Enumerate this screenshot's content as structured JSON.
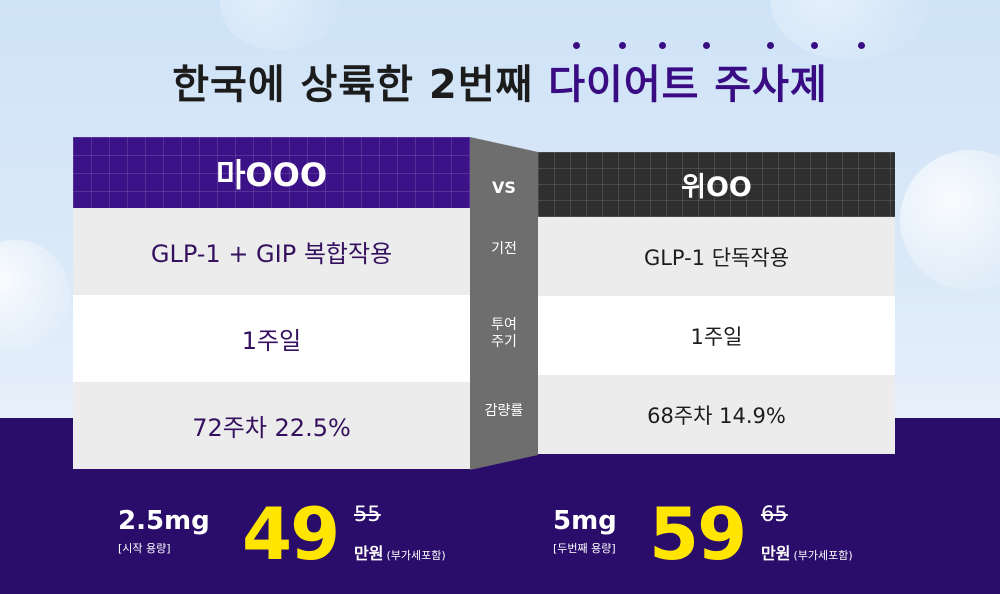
{
  "title": {
    "part1": "한국에 상륙한 2번째 ",
    "highlight": "다이어트 주사제"
  },
  "left": {
    "name": "마OOO",
    "rows": [
      "GLP-1 + GIP 복합작용",
      "1주일",
      "72주차 22.5%"
    ],
    "dose": "2.5mg",
    "dose_note": "[시작 용량]",
    "price": "49",
    "old_price": "55",
    "unit": "만원",
    "vat": "(부가세포함)"
  },
  "middle": {
    "vs": "VS",
    "labels": [
      "기전",
      "투여\n주기",
      "감량률"
    ]
  },
  "right": {
    "name": "위OO",
    "rows": [
      "GLP-1 단독작용",
      "1주일",
      "68주차 14.9%"
    ],
    "dose": "5mg",
    "dose_note": "[두번째 용량]",
    "price": "59",
    "old_price": "65",
    "unit": "만원",
    "vat": "(부가세포함)"
  },
  "colors": {
    "purple": "#3c1288",
    "dark": "#2f2f2f",
    "yellow": "#ffe500",
    "band": "#2a0c6b"
  }
}
